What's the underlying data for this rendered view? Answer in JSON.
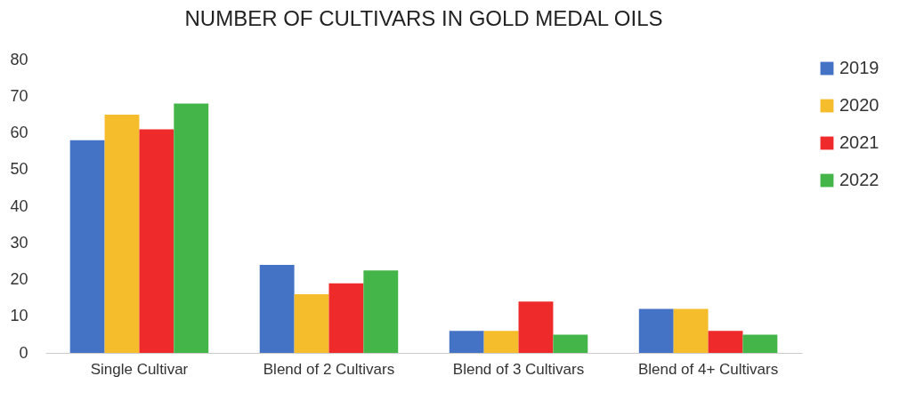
{
  "chart_data": {
    "type": "bar",
    "title": "NUMBER OF CULTIVARS IN GOLD MEDAL OILS",
    "categories": [
      "Single Cultivar",
      "Blend of 2 Cultivars",
      "Blend of 3 Cultivars",
      "Blend of 4+ Cultivars"
    ],
    "series": [
      {
        "name": "2019",
        "color": "#4472c4",
        "values": [
          58,
          24,
          6,
          12
        ]
      },
      {
        "name": "2020",
        "color": "#f5bc2c",
        "values": [
          65,
          16,
          6,
          12
        ]
      },
      {
        "name": "2021",
        "color": "#ee2a2a",
        "values": [
          61,
          19,
          14,
          6
        ]
      },
      {
        "name": "2022",
        "color": "#44b649",
        "values": [
          68,
          22.5,
          5,
          5
        ]
      }
    ],
    "ylim": [
      0,
      80
    ],
    "yticks": [
      0,
      10,
      20,
      30,
      40,
      50,
      60,
      70,
      80
    ],
    "grid": false,
    "legend": "right"
  }
}
